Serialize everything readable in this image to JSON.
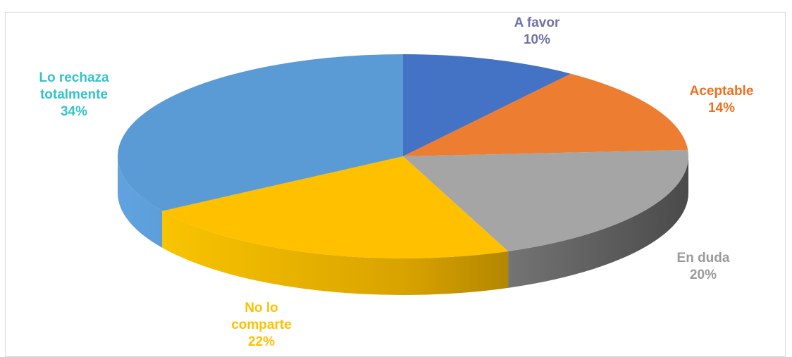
{
  "chart_data": {
    "type": "pie",
    "style": "3d",
    "title": "",
    "slices": [
      {
        "name": "A favor",
        "value": 10,
        "label": "10%",
        "color": "#4472c4",
        "label_color": "#7172a8",
        "label_lines": [
          "A favor"
        ]
      },
      {
        "name": "Aceptable",
        "value": 14,
        "label": "14%",
        "color": "#ed7d31",
        "label_color": "#f0701f",
        "label_lines": [
          "Aceptable"
        ]
      },
      {
        "name": "En duda",
        "value": 20,
        "label": "20%",
        "color": "#a5a5a5",
        "label_color": "#9a9a9a",
        "label_lines": [
          "En duda"
        ]
      },
      {
        "name": "No lo comparte",
        "value": 22,
        "label": "22%",
        "color": "#ffc000",
        "label_color": "#ffc000",
        "label_lines": [
          "No lo",
          "comparte"
        ]
      },
      {
        "name": "Lo rechaza totalmente",
        "value": 34,
        "label": "34%",
        "color": "#5b9bd5",
        "label_color": "#33c3c9",
        "label_lines": [
          "Lo rechaza",
          "totalmente"
        ]
      }
    ]
  }
}
